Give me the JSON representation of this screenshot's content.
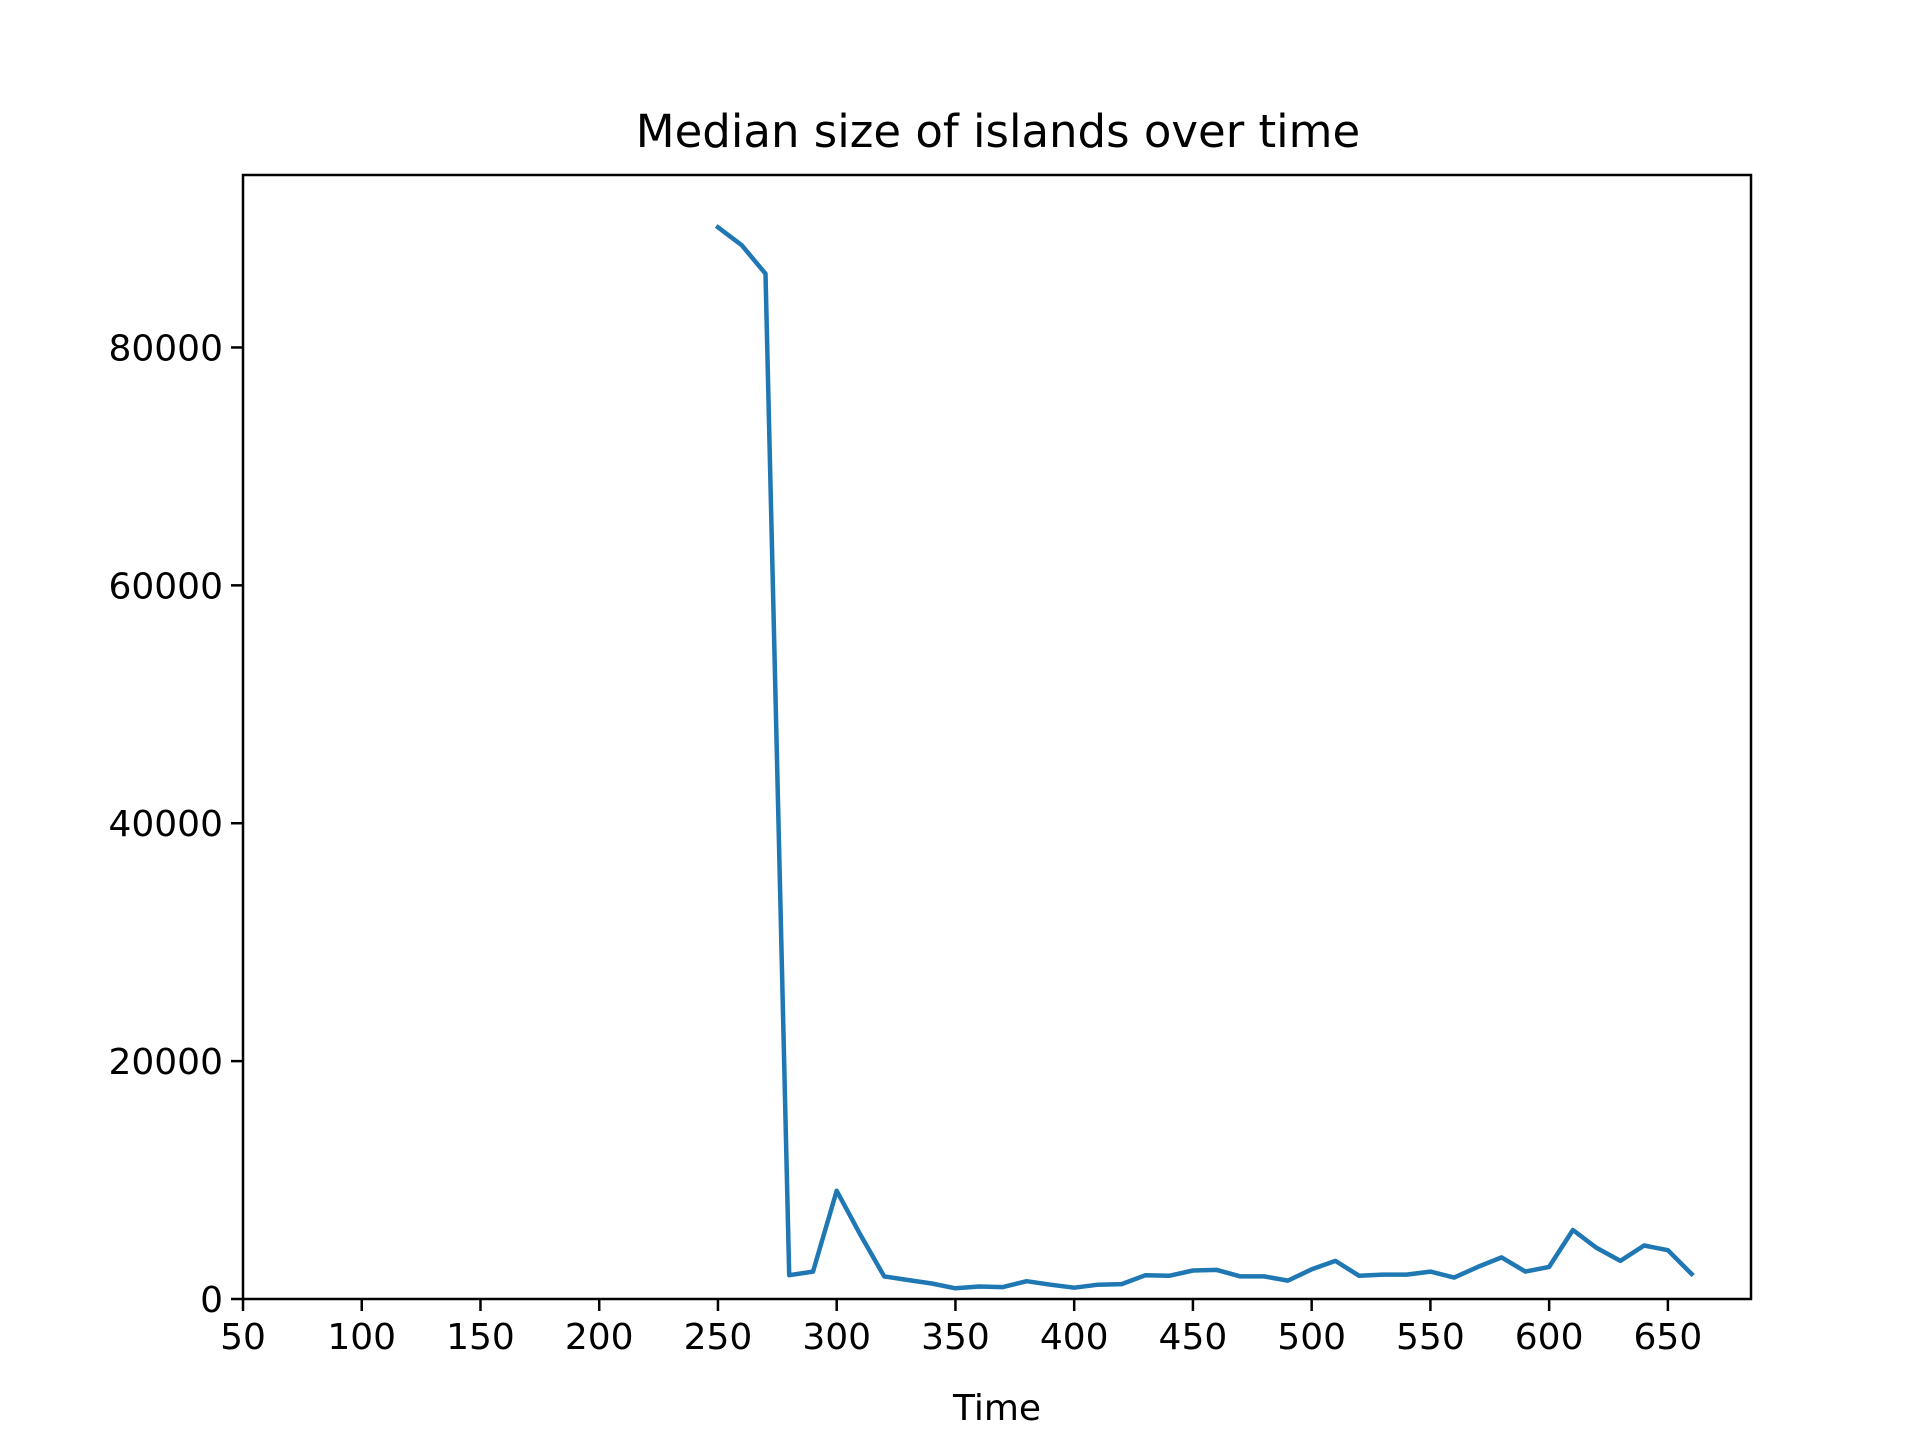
{
  "chart_data": {
    "type": "line",
    "title": "Median size of islands over time",
    "xlabel": "Time",
    "ylabel": "",
    "xlim": [
      50,
      685
    ],
    "ylim": [
      0,
      94500
    ],
    "xticks": [
      50,
      100,
      150,
      200,
      250,
      300,
      350,
      400,
      450,
      500,
      550,
      600,
      650
    ],
    "yticks": [
      0,
      20000,
      40000,
      60000,
      80000
    ],
    "grid": false,
    "series": [
      {
        "color": "#1f77b4",
        "x": [
          250,
          260,
          270,
          280,
          290,
          300,
          310,
          320,
          330,
          340,
          350,
          360,
          370,
          380,
          390,
          400,
          410,
          420,
          430,
          440,
          450,
          460,
          470,
          480,
          490,
          500,
          510,
          520,
          530,
          540,
          550,
          560,
          570,
          580,
          590,
          600,
          610,
          620,
          630,
          640,
          650,
          660
        ],
        "y": [
          90100,
          88600,
          86200,
          2000,
          2300,
          9100,
          5400,
          1900,
          1600,
          1300,
          900,
          1050,
          1000,
          1500,
          1200,
          950,
          1200,
          1250,
          2000,
          1950,
          2400,
          2450,
          1900,
          1900,
          1550,
          2500,
          3200,
          1950,
          2050,
          2050,
          2300,
          1800,
          2700,
          3500,
          2300,
          2700,
          5800,
          4300,
          3200,
          4500,
          4100,
          2100
        ]
      }
    ]
  }
}
